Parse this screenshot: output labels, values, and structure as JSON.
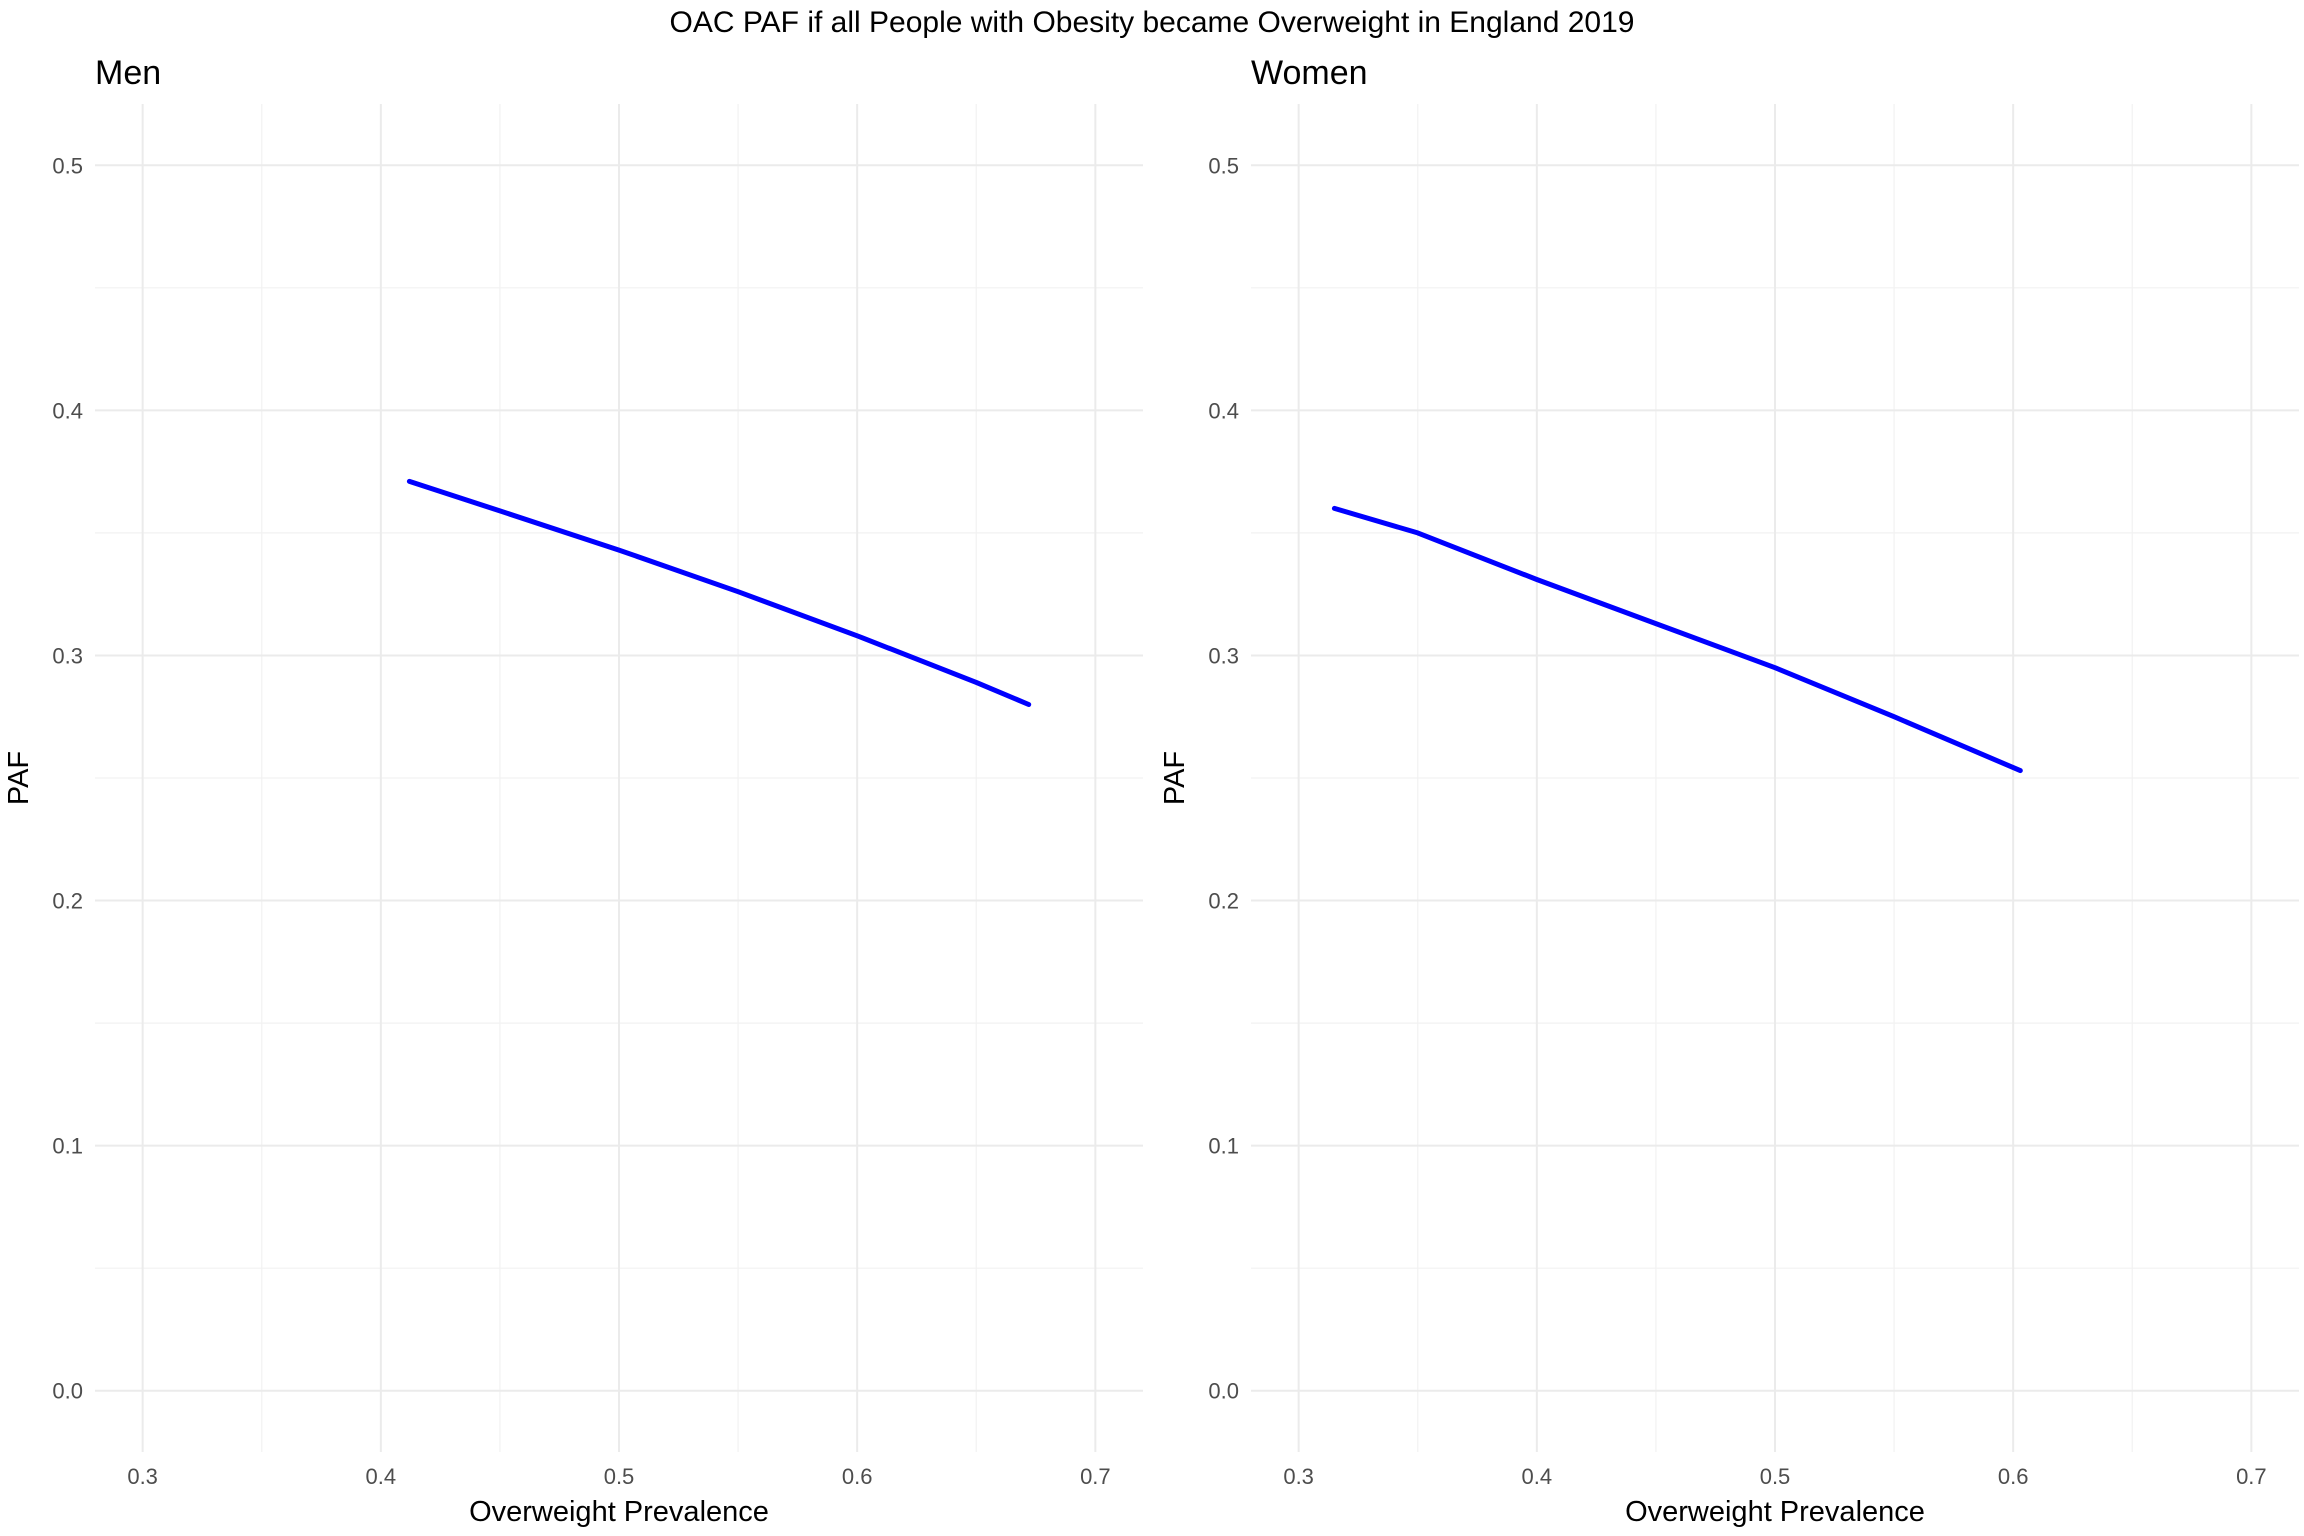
{
  "title": "OAC PAF if all People with Obesity became Overweight in England 2019",
  "colors": {
    "series": "#0000ff",
    "grid_major": "#ebebeb",
    "grid_minor": "#f2f2f2",
    "tick_text": "#4d4d4d"
  },
  "chart_data": [
    {
      "type": "line",
      "title": "Men",
      "xlabel": "Overweight Prevalence",
      "ylabel": "PAF",
      "xlim": [
        0.28,
        0.72
      ],
      "ylim": [
        -0.025,
        0.525
      ],
      "xticks": [
        0.3,
        0.4,
        0.5,
        0.6,
        0.7
      ],
      "xtick_labels": [
        "0.3",
        "0.4",
        "0.5",
        "0.6",
        "0.7"
      ],
      "yticks": [
        0.0,
        0.1,
        0.2,
        0.3,
        0.4,
        0.5
      ],
      "ytick_labels": [
        "0.0",
        "0.1",
        "0.2",
        "0.3",
        "0.4",
        "0.5"
      ],
      "grid": true,
      "series": [
        {
          "color": "#0000ff",
          "x": [
            0.412,
            0.45,
            0.5,
            0.55,
            0.6,
            0.65,
            0.672
          ],
          "y": [
            0.371,
            0.359,
            0.343,
            0.326,
            0.308,
            0.289,
            0.28
          ]
        }
      ]
    },
    {
      "type": "line",
      "title": "Women",
      "xlabel": "Overweight Prevalence",
      "ylabel": "PAF",
      "xlim": [
        0.28,
        0.72
      ],
      "ylim": [
        -0.025,
        0.525
      ],
      "xticks": [
        0.3,
        0.4,
        0.5,
        0.6,
        0.7
      ],
      "xtick_labels": [
        "0.3",
        "0.4",
        "0.5",
        "0.6",
        "0.7"
      ],
      "yticks": [
        0.0,
        0.1,
        0.2,
        0.3,
        0.4,
        0.5
      ],
      "ytick_labels": [
        "0.0",
        "0.1",
        "0.2",
        "0.3",
        "0.4",
        "0.5"
      ],
      "grid": true,
      "series": [
        {
          "color": "#0000ff",
          "x": [
            0.315,
            0.35,
            0.4,
            0.45,
            0.5,
            0.55,
            0.603
          ],
          "y": [
            0.36,
            0.35,
            0.331,
            0.313,
            0.295,
            0.275,
            0.253
          ]
        }
      ]
    }
  ]
}
